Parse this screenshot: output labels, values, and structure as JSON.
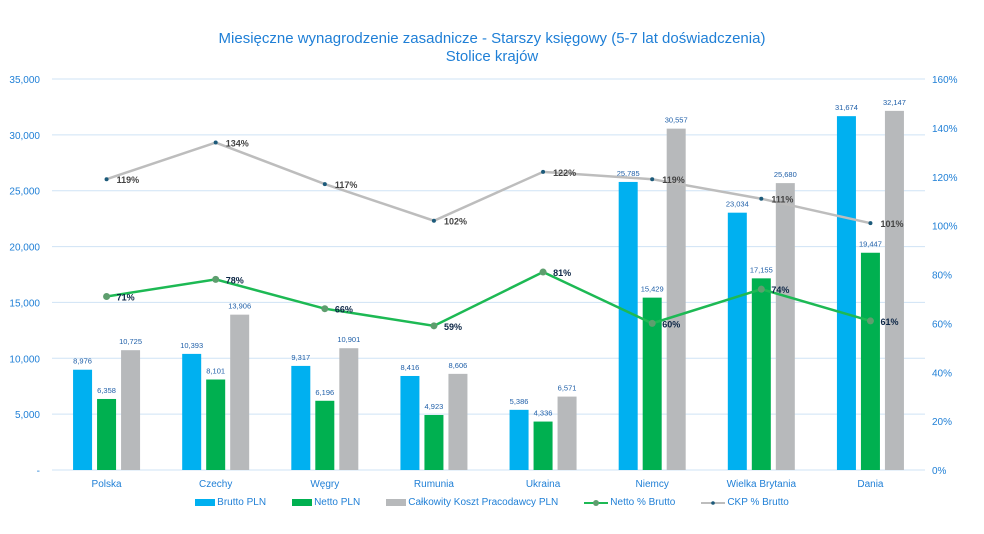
{
  "chart_data": {
    "type": "bar",
    "title": "Miesięczne wynagrodzenie zasadnicze - Starszy księgowy (5-7 lat doświadczenia)",
    "subtitle": "Stolice krajów",
    "categories": [
      "Polska",
      "Czechy",
      "Węgry",
      "Rumunia",
      "Ukraina",
      "Niemcy",
      "Wielka Brytania",
      "Dania"
    ],
    "y_left": {
      "range": [
        0,
        35000
      ],
      "ticks": [
        "-",
        "5,000",
        "10,000",
        "15,000",
        "20,000",
        "25,000",
        "30,000",
        "35,000"
      ]
    },
    "y_right": {
      "range": [
        0,
        1.6
      ],
      "ticks": [
        "0%",
        "20%",
        "40%",
        "60%",
        "80%",
        "100%",
        "120%",
        "140%",
        "160%"
      ]
    },
    "grid": true,
    "legend_position": "bottom",
    "series": [
      {
        "name": "Brutto PLN",
        "kind": "bar",
        "axis": "left",
        "color": "#00b0f0",
        "labels": [
          "8,976",
          "10,393",
          "9,317",
          "8,416",
          "5,386",
          "25,785",
          "23,034",
          "31,674"
        ],
        "values": [
          8976,
          10393,
          9317,
          8416,
          5386,
          25785,
          23034,
          31674
        ]
      },
      {
        "name": "Netto PLN",
        "kind": "bar",
        "axis": "left",
        "color": "#00b050",
        "labels": [
          "6,358",
          "8,101",
          "6,196",
          "4,923",
          "4,336",
          "15,429",
          "17,155",
          "19,447"
        ],
        "values": [
          6358,
          8101,
          6196,
          4923,
          4336,
          15429,
          17155,
          19447
        ]
      },
      {
        "name": "Całkowity Koszt Pracodawcy PLN",
        "kind": "bar",
        "axis": "left",
        "color": "#b7b9bb",
        "labels": [
          "10,725",
          "13,906",
          "10,901",
          "8,606",
          "6,571",
          "30,557",
          "25,680",
          "32,147"
        ],
        "values": [
          10725,
          13906,
          10901,
          8606,
          6571,
          30557,
          25680,
          32147
        ]
      },
      {
        "name": "Netto % Brutto",
        "kind": "line",
        "axis": "right",
        "color": "#1db954",
        "labels": [
          "71%",
          "78%",
          "66%",
          "59%",
          "81%",
          "60%",
          "74%",
          "61%"
        ],
        "values": [
          0.71,
          0.78,
          0.66,
          0.59,
          0.81,
          0.6,
          0.74,
          0.61
        ]
      },
      {
        "name": "CKP % Brutto",
        "kind": "line",
        "axis": "right",
        "color": "#bdbdbd",
        "labels": [
          "119%",
          "134%",
          "117%",
          "102%",
          "122%",
          "119%",
          "111%",
          "101%"
        ],
        "values": [
          1.19,
          1.34,
          1.17,
          1.02,
          1.22,
          1.19,
          1.11,
          1.01
        ]
      }
    ]
  }
}
